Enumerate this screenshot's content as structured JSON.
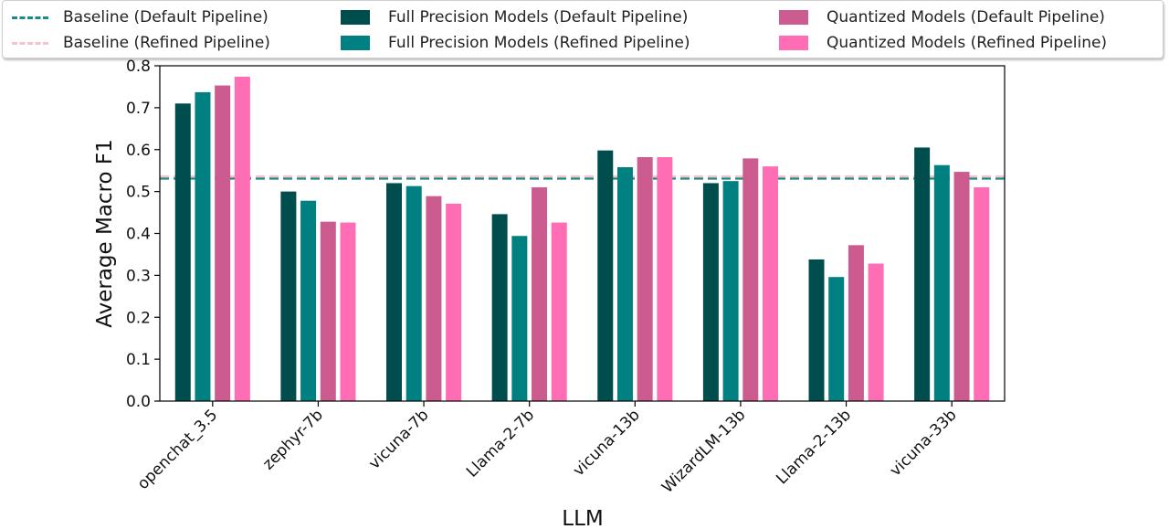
{
  "chart_data": {
    "type": "bar",
    "xlabel": "LLM",
    "ylabel": "Average Macro F1",
    "ylim": [
      0,
      0.8
    ],
    "yticks": [
      "0.0",
      "0.1",
      "0.2",
      "0.3",
      "0.4",
      "0.5",
      "0.6",
      "0.7",
      "0.8"
    ],
    "categories": [
      "openchat_3.5",
      "zephyr-7b",
      "vicuna-7b",
      "Llama-2-7b",
      "vicuna-13b",
      "WizardLM-13b",
      "Llama-2-13b",
      "vicuna-33b"
    ],
    "series": [
      {
        "name": "Full Precision Models (Default Pipeline)",
        "color": "#004d4d",
        "values": [
          0.71,
          0.5,
          0.52,
          0.446,
          0.598,
          0.52,
          0.338,
          0.605
        ]
      },
      {
        "name": "Full Precision Models (Refined Pipeline)",
        "color": "#008080",
        "values": [
          0.737,
          0.478,
          0.513,
          0.394,
          0.558,
          0.525,
          0.296,
          0.563
        ]
      },
      {
        "name": "Quantized Models (Default Pipeline)",
        "color": "#cc5c8f",
        "values": [
          0.753,
          0.428,
          0.489,
          0.51,
          0.582,
          0.579,
          0.372,
          0.547
        ]
      },
      {
        "name": "Quantized Models (Refined Pipeline)",
        "color": "#ff6eb4",
        "values": [
          0.774,
          0.426,
          0.471,
          0.426,
          0.582,
          0.56,
          0.328,
          0.51
        ]
      }
    ],
    "baselines": [
      {
        "name": "Baseline (Default Pipeline)",
        "value": 0.531,
        "color": "#1a8a8a"
      },
      {
        "name": "Baseline (Refined Pipeline)",
        "value": 0.536,
        "color": "#f6c4c8"
      }
    ],
    "legend_position": "top"
  }
}
